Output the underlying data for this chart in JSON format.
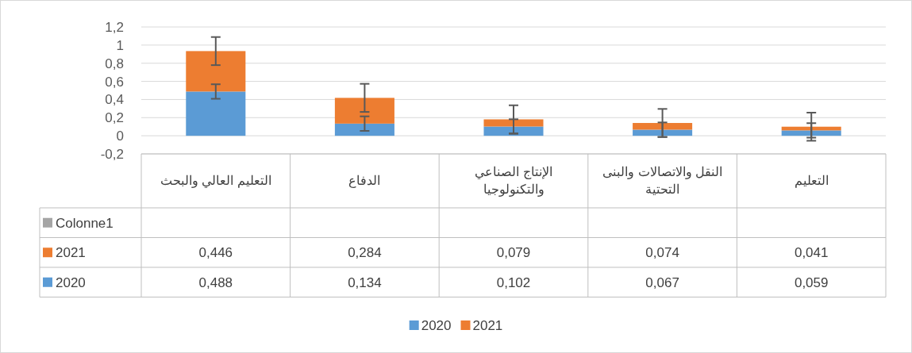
{
  "chart_data": {
    "type": "bar",
    "stacked": true,
    "categories": [
      "التعليم العالي والبحث",
      "الدفاع",
      "الإنتاج  الصناعي والتكنولوجيا",
      "النقل والاتصالات والبنى التحتية",
      "التعليم"
    ],
    "series": [
      {
        "name": "2020",
        "color": "#5b9bd5",
        "values": [
          0.488,
          0.134,
          0.102,
          0.067,
          0.059
        ],
        "errors": [
          0.08,
          0.08,
          0.08,
          0.08,
          0.08
        ],
        "value_labels": [
          "0,488",
          "0,134",
          "0,102",
          "0,067",
          "0,059"
        ]
      },
      {
        "name": "2021",
        "color": "#ed7d31",
        "values": [
          0.446,
          0.284,
          0.079,
          0.074,
          0.041
        ],
        "errors": [
          0.155,
          0.155,
          0.155,
          0.155,
          0.155
        ],
        "value_labels": [
          "0,446",
          "0,284",
          "0,079",
          "0,074",
          "0,041"
        ]
      },
      {
        "name": "Colonne1",
        "color": "#a5a5a5",
        "values": [
          null,
          null,
          null,
          null,
          null
        ]
      }
    ],
    "ylim": [
      -0.2,
      1.2
    ],
    "yticks": [
      {
        "value": -0.2,
        "label": "-0,2"
      },
      0,
      {
        "value": 0.2,
        "label": "0,2"
      },
      {
        "value": 0.4,
        "label": "0,4"
      },
      {
        "value": 0.6,
        "label": "0,6"
      },
      {
        "value": 0.8,
        "label": "0,8"
      },
      1,
      {
        "value": 1.2,
        "label": "1,2"
      }
    ],
    "grid": "y",
    "legend": "bottom"
  }
}
